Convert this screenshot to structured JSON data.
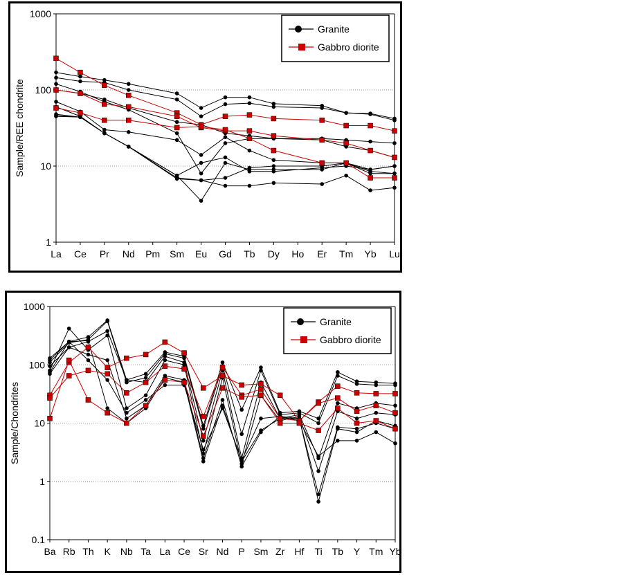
{
  "colors": {
    "granite": "#000000",
    "gabbro": "#cc0000",
    "grid": "#999999",
    "axis": "#000000"
  },
  "chart_data": [
    {
      "type": "line",
      "yscale": "log",
      "title": "",
      "xlabel": "",
      "ylabel": "Sample/REE chondrite",
      "ylim": [
        1,
        1000
      ],
      "yticks": [
        1,
        10,
        100,
        1000
      ],
      "ytick_labels": [
        "1",
        "10",
        "100",
        "1000"
      ],
      "grid": true,
      "legend_position": "top-right",
      "categories": [
        "La",
        "Ce",
        "Pr",
        "Nd",
        "Pm",
        "Sm",
        "Eu",
        "Gd",
        "Tb",
        "Dy",
        "Ho",
        "Er",
        "Tm",
        "Yb",
        "Lu"
      ],
      "series": [
        {
          "name": "Granite",
          "group": "granite",
          "legend": true,
          "values": [
            170,
            150,
            135,
            120,
            null,
            90,
            58,
            80,
            80,
            66,
            null,
            62,
            50,
            49,
            42
          ]
        },
        {
          "name": "Granite",
          "group": "granite",
          "legend": false,
          "values": [
            145,
            130,
            125,
            100,
            null,
            75,
            45,
            65,
            67,
            60,
            null,
            58,
            50,
            48,
            40
          ]
        },
        {
          "name": "Granite",
          "group": "granite",
          "legend": false,
          "values": [
            120,
            95,
            70,
            55,
            null,
            27,
            8,
            20,
            23,
            23,
            null,
            23,
            22,
            21,
            20
          ]
        },
        {
          "name": "Granite",
          "group": "granite",
          "legend": false,
          "values": [
            70,
            52,
            30,
            28,
            null,
            22,
            14,
            24,
            16,
            12,
            null,
            11,
            11,
            9,
            10
          ]
        },
        {
          "name": "Granite",
          "group": "granite",
          "legend": false,
          "values": [
            48,
            44,
            27,
            18,
            null,
            7.5,
            3.5,
            11,
            9,
            9,
            null,
            9,
            11,
            8,
            8
          ]
        },
        {
          "name": "Granite",
          "group": "granite",
          "legend": false,
          "values": [
            60,
            45,
            27,
            18,
            null,
            6.8,
            6.5,
            7,
            9.5,
            10,
            null,
            10,
            11,
            8.5,
            8
          ]
        },
        {
          "name": "Granite",
          "group": "granite",
          "legend": false,
          "values": [
            45,
            44,
            27,
            18,
            null,
            7.5,
            11,
            13,
            8.5,
            8.5,
            null,
            9.5,
            10,
            9,
            10
          ]
        },
        {
          "name": "Granite",
          "group": "granite",
          "legend": false,
          "values": [
            100,
            90,
            75,
            58,
            null,
            38,
            35,
            27,
            25,
            23,
            null,
            22,
            18,
            16,
            13
          ]
        },
        {
          "name": "Granite",
          "group": "granite",
          "legend": false,
          "values": [
            46,
            44,
            27,
            18,
            null,
            7,
            6.5,
            5.5,
            5.5,
            6,
            null,
            5.8,
            7.5,
            4.8,
            5.2
          ]
        },
        {
          "name": "Gabbro diorite",
          "group": "gabbro",
          "legend": true,
          "values": [
            260,
            170,
            115,
            85,
            null,
            50,
            35,
            45,
            47,
            42,
            null,
            40,
            34,
            34,
            29
          ]
        },
        {
          "name": "Gabbro diorite",
          "group": "gabbro",
          "legend": false,
          "values": [
            100,
            90,
            65,
            60,
            null,
            45,
            32,
            29,
            29,
            25,
            null,
            22,
            20,
            16,
            13
          ]
        },
        {
          "name": "Gabbro diorite",
          "group": "gabbro",
          "legend": false,
          "values": [
            58,
            50,
            40,
            40,
            null,
            32,
            33,
            30,
            23,
            16,
            null,
            11,
            11,
            7,
            7
          ]
        }
      ]
    },
    {
      "type": "line",
      "yscale": "log",
      "title": "",
      "xlabel": "",
      "ylabel": "Sample/Chondrites",
      "ylim": [
        0.1,
        1000
      ],
      "yticks": [
        0.1,
        1,
        10,
        100,
        1000
      ],
      "ytick_labels": [
        "0.1",
        "1",
        "10",
        "100",
        "1000"
      ],
      "grid": true,
      "legend_position": "top-right",
      "categories": [
        "Ba",
        "Rb",
        "Th",
        "K",
        "Nb",
        "Ta",
        "La",
        "Ce",
        "Sr",
        "Nd",
        "P",
        "Sm",
        "Zr",
        "Hf",
        "Ti",
        "Tb",
        "Y",
        "Tm",
        "Yb"
      ],
      "series": [
        {
          "name": "Granite",
          "group": "granite",
          "legend": true,
          "values": [
            130,
            250,
            300,
            580,
            55,
            70,
            165,
            140,
            9,
            110,
            17,
            90,
            15,
            16,
            12,
            75,
            52,
            50,
            48
          ]
        },
        {
          "name": "Granite",
          "group": "granite",
          "legend": false,
          "values": [
            110,
            240,
            270,
            560,
            50,
            60,
            155,
            130,
            8,
            95,
            6.5,
            80,
            14,
            15,
            10,
            65,
            47,
            45,
            45
          ]
        },
        {
          "name": "Granite",
          "group": "granite",
          "legend": false,
          "values": [
            95,
            200,
            250,
            380,
            55,
            50,
            140,
            110,
            5,
            80,
            2.5,
            50,
            12,
            14,
            2.5,
            22,
            18,
            22,
            20
          ]
        },
        {
          "name": "Granite",
          "group": "granite",
          "legend": false,
          "values": [
            80,
            420,
            180,
            320,
            18,
            30,
            120,
            100,
            3,
            60,
            2,
            30,
            11,
            13,
            1.5,
            16,
            12,
            15,
            14
          ]
        },
        {
          "name": "Granite",
          "group": "granite",
          "legend": false,
          "values": [
            70,
            200,
            150,
            120,
            12,
            20,
            65,
            55,
            2.5,
            25,
            1.8,
            7,
            13,
            12,
            0.45,
            8,
            7,
            11,
            9
          ]
        },
        {
          "name": "Granite",
          "group": "granite",
          "legend": false,
          "values": [
            75,
            250,
            260,
            18,
            10,
            18,
            60,
            50,
            2.2,
            20,
            2.2,
            7.5,
            12,
            12,
            0.6,
            8.5,
            8,
            10,
            8
          ]
        },
        {
          "name": "Granite",
          "group": "granite",
          "legend": false,
          "values": [
            120,
            250,
            120,
            55,
            15,
            25,
            45,
            45,
            3.5,
            18,
            2.3,
            12,
            13,
            11,
            2.7,
            5,
            5,
            7,
            4.5
          ]
        },
        {
          "name": "Gabbro diorite",
          "group": "gabbro",
          "legend": true,
          "values": [
            30,
            110,
            200,
            90,
            130,
            150,
            245,
            160,
            40,
            65,
            45,
            47,
            30,
            11,
            23,
            43,
            33,
            32,
            32
          ]
        },
        {
          "name": "Gabbro diorite",
          "group": "gabbro",
          "legend": false,
          "values": [
            27,
            65,
            80,
            70,
            33,
            50,
            95,
            85,
            13,
            90,
            30,
            38,
            12,
            11,
            22,
            27,
            16,
            20,
            15
          ]
        },
        {
          "name": "Gabbro diorite",
          "group": "gabbro",
          "legend": false,
          "values": [
            12,
            120,
            25,
            15,
            10,
            20,
            55,
            50,
            6,
            40,
            28,
            30,
            10,
            10,
            7.5,
            18,
            10,
            11,
            8
          ]
        }
      ]
    }
  ]
}
